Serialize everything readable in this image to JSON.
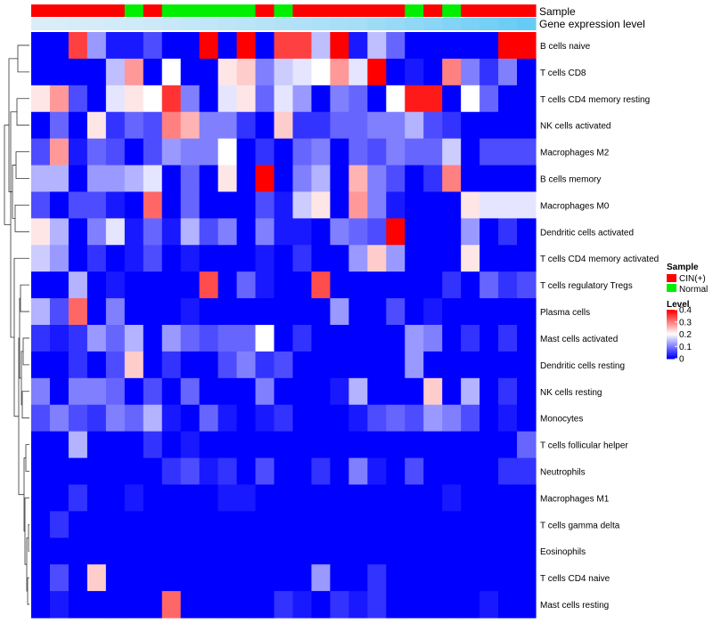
{
  "chart_data": {
    "type": "heatmap",
    "title": "",
    "annotation_tracks": [
      {
        "name": "Sample",
        "values": [
          "CIN(+)",
          "CIN(+)",
          "CIN(+)",
          "CIN(+)",
          "CIN(+)",
          "Normal",
          "CIN(+)",
          "Normal",
          "Normal",
          "Normal",
          "Normal",
          "Normal",
          "CIN(+)",
          "Normal",
          "CIN(+)",
          "CIN(+)",
          "CIN(+)",
          "CIN(+)",
          "CIN(+)",
          "CIN(+)",
          "Normal",
          "CIN(+)",
          "Normal",
          "CIN(+)",
          "CIN(+)",
          "CIN(+)",
          "CIN(+)"
        ]
      },
      {
        "name": "Gene expression level",
        "values": [
          0.02,
          0.03,
          0.05,
          0.06,
          0.08,
          0.1,
          0.12,
          0.15,
          0.18,
          0.2,
          0.22,
          0.25,
          0.28,
          0.3,
          0.32,
          0.35,
          0.38,
          0.4,
          0.45,
          0.5,
          0.55,
          0.6,
          0.65,
          0.7,
          0.75,
          0.8,
          0.85
        ]
      }
    ],
    "rows": [
      "B cells naive",
      "T cells CD8",
      "T cells CD4 memory resting",
      "NK cells activated",
      "Macrophages M2",
      "B cells memory",
      "Macrophages M0",
      "Dendritic cells activated",
      "T cells CD4 memory activated",
      "T cells regulatory  Tregs",
      "Plasma cells",
      "Mast cells activated",
      "Dendritic cells resting",
      "NK cells resting",
      "Monocytes",
      "T cells follicular helper",
      "Neutrophils",
      "Macrophages M1",
      "T cells gamma delta",
      "Eosinophils",
      "T cells CD4 naive",
      "Mast cells resting"
    ],
    "values": [
      [
        0,
        0,
        0.35,
        0.12,
        0.02,
        0.02,
        0.06,
        0,
        0,
        0.4,
        0,
        0.4,
        0,
        0.35,
        0.35,
        0.15,
        0.42,
        0.02,
        0.15,
        0.08,
        0,
        0,
        0,
        0,
        0,
        0.42,
        0.42
      ],
      [
        0,
        0,
        0,
        0,
        0.15,
        0.28,
        0,
        0.2,
        0,
        0,
        0.22,
        0.24,
        0.1,
        0.16,
        0.18,
        0.2,
        0.28,
        0.18,
        0.45,
        0,
        0.02,
        0,
        0.3,
        0.1,
        0.04,
        0.1,
        0
      ],
      [
        0.22,
        0.28,
        0.06,
        0,
        0.18,
        0.22,
        0.2,
        0.36,
        0.1,
        0,
        0.18,
        0.22,
        0.08,
        0.18,
        0.12,
        0,
        0.1,
        0.08,
        0,
        0.2,
        0.38,
        0.38,
        0,
        0.2,
        0.08,
        0,
        0
      ],
      [
        0,
        0.08,
        0,
        0.22,
        0.04,
        0.08,
        0.06,
        0.3,
        0.26,
        0.1,
        0.1,
        0.04,
        0,
        0.24,
        0.04,
        0.04,
        0.08,
        0.08,
        0.1,
        0.1,
        0.14,
        0.06,
        0.04,
        0,
        0,
        0,
        0
      ],
      [
        0.06,
        0.28,
        0.02,
        0.08,
        0.06,
        0,
        0.06,
        0.12,
        0.1,
        0.1,
        0.2,
        0,
        0.04,
        0,
        0.08,
        0.1,
        0,
        0.08,
        0.06,
        0.1,
        0.08,
        0.08,
        0.16,
        0,
        0.06,
        0.06,
        0.06
      ],
      [
        0.14,
        0.14,
        0,
        0.12,
        0.12,
        0.14,
        0.18,
        0,
        0.08,
        0,
        0.22,
        0,
        0.4,
        0,
        0.1,
        0.14,
        0,
        0.26,
        0.1,
        0.06,
        0,
        0.04,
        0.3,
        0,
        0,
        0,
        0
      ],
      [
        0.06,
        0,
        0.06,
        0.06,
        0.02,
        0,
        0.32,
        0,
        0.08,
        0,
        0,
        0,
        0.06,
        0.02,
        0.16,
        0.22,
        0,
        0.28,
        0.1,
        0.02,
        0,
        0,
        0,
        0.22,
        0.18,
        0.18,
        0.18
      ],
      [
        0.22,
        0.14,
        0,
        0.1,
        0.18,
        0.02,
        0.08,
        0.02,
        0.14,
        0.06,
        0.1,
        0,
        0.1,
        0.02,
        0.02,
        0,
        0.1,
        0.08,
        0.06,
        0.45,
        0,
        0,
        0,
        0.12,
        0,
        0.04,
        0
      ],
      [
        0.16,
        0.12,
        0,
        0.04,
        0,
        0.02,
        0.06,
        0,
        0.02,
        0,
        0,
        0,
        0.02,
        0,
        0.04,
        0,
        0,
        0.12,
        0.24,
        0.12,
        0,
        0,
        0,
        0.22,
        0,
        0,
        0
      ],
      [
        0,
        0,
        0.14,
        0,
        0.02,
        0,
        0,
        0,
        0,
        0.34,
        0,
        0.08,
        0.02,
        0,
        0,
        0.34,
        0,
        0,
        0,
        0,
        0,
        0,
        0.04,
        0,
        0.08,
        0.04,
        0.06
      ],
      [
        0.14,
        0.06,
        0.32,
        0,
        0.1,
        0,
        0,
        0,
        0.02,
        0,
        0,
        0,
        0,
        0,
        0,
        0,
        0.12,
        0,
        0,
        0.06,
        0,
        0.02,
        0,
        0,
        0,
        0,
        0
      ],
      [
        0.04,
        0.02,
        0.04,
        0.12,
        0.08,
        0.14,
        0,
        0.12,
        0.08,
        0.06,
        0.08,
        0.08,
        0.2,
        0,
        0.04,
        0,
        0,
        0,
        0,
        0,
        0.12,
        0.1,
        0,
        0.04,
        0,
        0.04,
        0
      ],
      [
        0,
        0,
        0.04,
        0,
        0.06,
        0.24,
        0,
        0.04,
        0,
        0,
        0.06,
        0.1,
        0.04,
        0.06,
        0,
        0,
        0,
        0,
        0,
        0,
        0.12,
        0,
        0,
        0,
        0,
        0,
        0
      ],
      [
        0.1,
        0,
        0.1,
        0.1,
        0.08,
        0,
        0.06,
        0,
        0.08,
        0,
        0,
        0,
        0.1,
        0,
        0,
        0,
        0.02,
        0.14,
        0,
        0,
        0,
        0.24,
        0,
        0.14,
        0,
        0.04,
        0
      ],
      [
        0.06,
        0.1,
        0.06,
        0.04,
        0.1,
        0.08,
        0.14,
        0.02,
        0,
        0.08,
        0.02,
        0,
        0.02,
        0.04,
        0,
        0,
        0,
        0.02,
        0.06,
        0.08,
        0.06,
        0.12,
        0.1,
        0.06,
        0,
        0.02,
        0
      ],
      [
        0,
        0,
        0.14,
        0,
        0,
        0,
        0.04,
        0,
        0.02,
        0,
        0,
        0,
        0,
        0,
        0,
        0,
        0,
        0,
        0,
        0,
        0,
        0,
        0,
        0,
        0,
        0,
        0.08
      ],
      [
        0,
        0,
        0,
        0,
        0,
        0,
        0,
        0.04,
        0.06,
        0.02,
        0.04,
        0,
        0.06,
        0,
        0,
        0.04,
        0,
        0.1,
        0.02,
        0,
        0.06,
        0,
        0,
        0,
        0,
        0.04,
        0.04
      ],
      [
        0,
        0,
        0.04,
        0,
        0,
        0.02,
        0,
        0,
        0,
        0,
        0.02,
        0.02,
        0,
        0,
        0,
        0,
        0,
        0,
        0,
        0,
        0,
        0,
        0.02,
        0,
        0,
        0,
        0
      ],
      [
        0,
        0.04,
        0,
        0,
        0,
        0,
        0,
        0,
        0,
        0,
        0,
        0,
        0,
        0,
        0,
        0,
        0,
        0,
        0,
        0,
        0,
        0,
        0,
        0,
        0,
        0,
        0
      ],
      [
        0,
        0,
        0,
        0,
        0,
        0,
        0,
        0,
        0,
        0,
        0,
        0,
        0,
        0,
        0,
        0,
        0,
        0,
        0,
        0,
        0,
        0,
        0,
        0,
        0,
        0,
        0
      ],
      [
        0,
        0.06,
        0,
        0.24,
        0,
        0,
        0,
        0,
        0,
        0,
        0,
        0,
        0,
        0,
        0,
        0.12,
        0,
        0,
        0.04,
        0,
        0,
        0,
        0,
        0,
        0,
        0,
        0
      ],
      [
        0,
        0.02,
        0,
        0,
        0,
        0,
        0,
        0.32,
        0,
        0,
        0,
        0,
        0,
        0.04,
        0.02,
        0,
        0.04,
        0.02,
        0.04,
        0,
        0,
        0,
        0,
        0,
        0.02,
        0,
        0
      ]
    ],
    "color_scale": {
      "min": 0,
      "mid": 0.2,
      "max": 0.4,
      "low": "#0000FF",
      "midColor": "#FFFFFF",
      "high": "#FF0000"
    },
    "legend": {
      "sample_title": "Sample",
      "sample_items": [
        {
          "label": "CIN(+)",
          "color": "#FF0000"
        },
        {
          "label": "Normal",
          "color": "#00EE00"
        }
      ],
      "level_title": "Level",
      "level_ticks": [
        {
          "value": 0.4,
          "label": "0.4"
        },
        {
          "value": 0.3,
          "label": "0.3"
        },
        {
          "value": 0.2,
          "label": "0.2"
        },
        {
          "value": 0.1,
          "label": "0.1"
        },
        {
          "value": 0,
          "label": "0"
        }
      ],
      "position": "right"
    },
    "track_colors": {
      "CIN(+)": "#FF0000",
      "Normal": "#00EE00",
      "expr_low": "#DDEEF8",
      "expr_high": "#66CCF5"
    },
    "dendrogram": "rows"
  }
}
